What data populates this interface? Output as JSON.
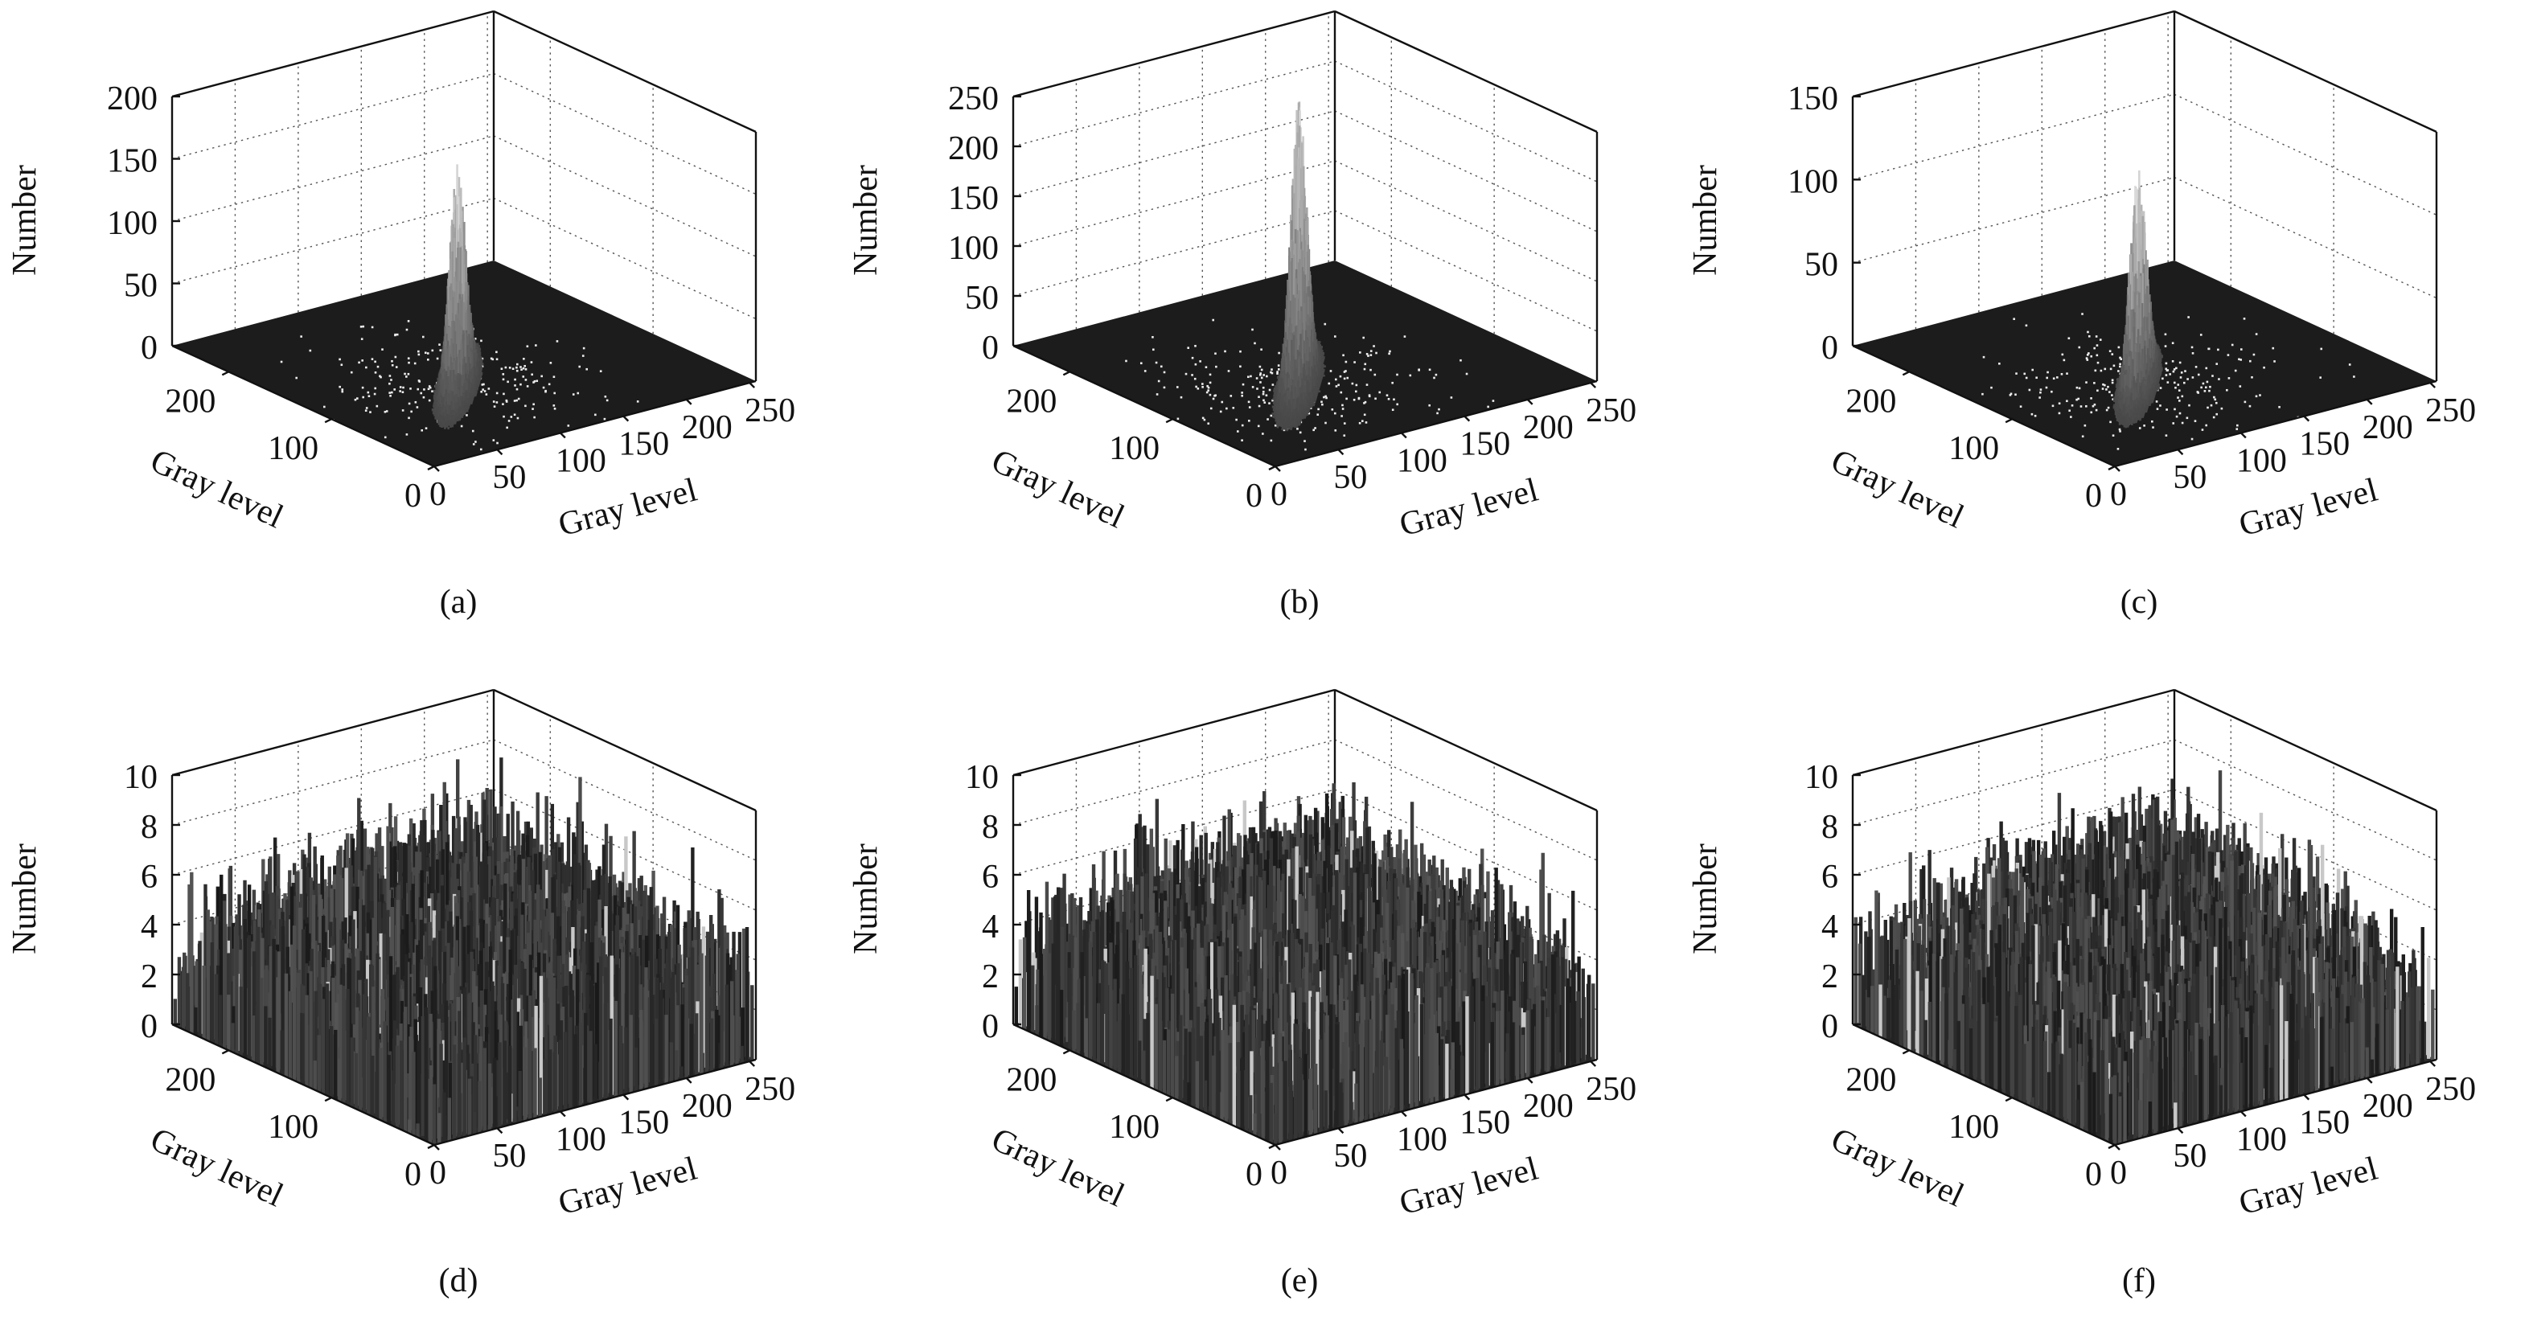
{
  "chart_data": [
    {
      "type": "surface",
      "panel_label": "(a)",
      "zlabel": "Number",
      "xlabel": "Gray level",
      "ylabel": "Gray level",
      "zlim": [
        0,
        200
      ],
      "z_ticks": [
        0,
        50,
        100,
        150,
        200
      ],
      "xlim": [
        0,
        255
      ],
      "x_ticks": [
        0,
        50,
        100,
        150,
        200,
        250
      ],
      "ylim": [
        0,
        255
      ],
      "y_ticks": [
        0,
        100,
        200
      ],
      "grid": true,
      "colormap": "gray",
      "peak_value": 180,
      "peak_gray_level": [
        100,
        100
      ],
      "distribution": "concentrated along diagonal"
    },
    {
      "type": "surface",
      "panel_label": "(b)",
      "zlabel": "Number",
      "xlabel": "Gray level",
      "ylabel": "Gray level",
      "zlim": [
        0,
        250
      ],
      "z_ticks": [
        0,
        50,
        100,
        150,
        200,
        250
      ],
      "xlim": [
        0,
        255
      ],
      "x_ticks": [
        0,
        50,
        100,
        150,
        200,
        250
      ],
      "ylim": [
        0,
        255
      ],
      "y_ticks": [
        0,
        100,
        200
      ],
      "grid": true,
      "colormap": "gray",
      "peak_value": 290,
      "peak_gray_level": [
        100,
        100
      ],
      "distribution": "concentrated along diagonal"
    },
    {
      "type": "surface",
      "panel_label": "(c)",
      "zlabel": "Number",
      "xlabel": "Gray level",
      "ylabel": "Gray level",
      "zlim": [
        0,
        150
      ],
      "z_ticks": [
        0,
        50,
        100,
        150
      ],
      "xlim": [
        0,
        255
      ],
      "x_ticks": [
        0,
        50,
        100,
        150,
        200,
        250
      ],
      "ylim": [
        0,
        255
      ],
      "y_ticks": [
        0,
        100,
        200
      ],
      "grid": true,
      "colormap": "gray",
      "peak_value": 135,
      "peak_gray_level": [
        100,
        100
      ],
      "distribution": "concentrated along diagonal"
    },
    {
      "type": "surface",
      "panel_label": "(d)",
      "zlabel": "Number",
      "xlabel": "Gray level",
      "ylabel": "Gray level",
      "zlim": [
        0,
        10
      ],
      "z_ticks": [
        0,
        2,
        4,
        6,
        8,
        10
      ],
      "xlim": [
        0,
        255
      ],
      "x_ticks": [
        0,
        50,
        100,
        150,
        200,
        250
      ],
      "ylim": [
        0,
        255
      ],
      "y_ticks": [
        0,
        100,
        200
      ],
      "grid": true,
      "colormap": "gray",
      "peak_value": 10,
      "typical_range": [
        0,
        8
      ],
      "distribution": "approximately uniform"
    },
    {
      "type": "surface",
      "panel_label": "(e)",
      "zlabel": "Number",
      "xlabel": "Gray level",
      "ylabel": "Gray level",
      "zlim": [
        0,
        10
      ],
      "z_ticks": [
        0,
        2,
        4,
        6,
        8,
        10
      ],
      "xlim": [
        0,
        255
      ],
      "x_ticks": [
        0,
        50,
        100,
        150,
        200,
        250
      ],
      "ylim": [
        0,
        255
      ],
      "y_ticks": [
        0,
        100,
        200
      ],
      "grid": true,
      "colormap": "gray",
      "peak_value": 9,
      "typical_range": [
        0,
        8
      ],
      "distribution": "approximately uniform"
    },
    {
      "type": "surface",
      "panel_label": "(f)",
      "zlabel": "Number",
      "xlabel": "Gray level",
      "ylabel": "Gray level",
      "zlim": [
        0,
        10
      ],
      "z_ticks": [
        0,
        2,
        4,
        6,
        8,
        10
      ],
      "xlim": [
        0,
        255
      ],
      "x_ticks": [
        0,
        50,
        100,
        150,
        200,
        250
      ],
      "ylim": [
        0,
        255
      ],
      "y_ticks": [
        0,
        100,
        200
      ],
      "grid": true,
      "colormap": "gray",
      "peak_value": 10,
      "typical_range": [
        0,
        8
      ],
      "distribution": "approximately uniform"
    }
  ]
}
